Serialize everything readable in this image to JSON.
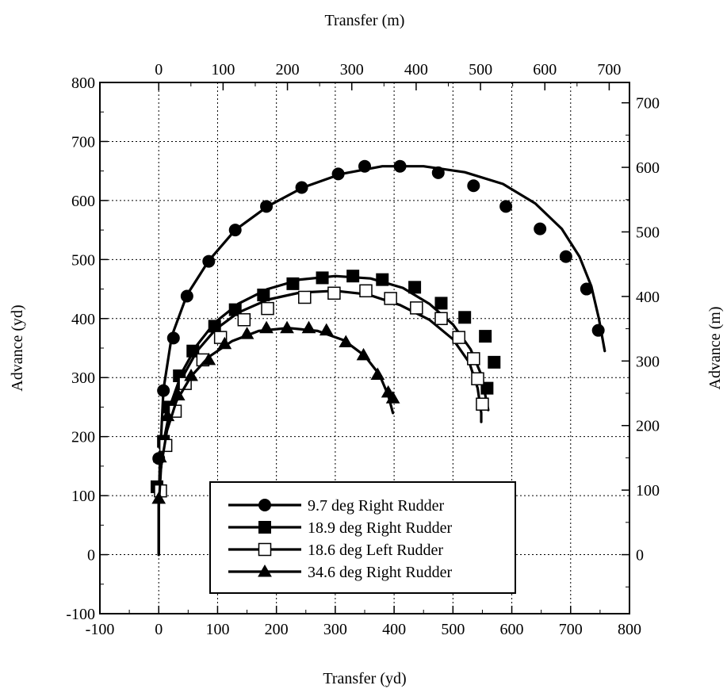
{
  "chart_data": {
    "type": "line",
    "xlabel": "Transfer (yd)",
    "ylabel": "Advance (yd)",
    "x2label": "Transfer (m)",
    "y2label": "Advance (m)",
    "xlim": [
      -100,
      800
    ],
    "ylim": [
      -100,
      800
    ],
    "x_ticks": [
      -100,
      0,
      100,
      200,
      300,
      400,
      500,
      600,
      700,
      800
    ],
    "y_ticks": [
      -100,
      0,
      100,
      200,
      300,
      400,
      500,
      600,
      700,
      800
    ],
    "x2_ticks": [
      0,
      100,
      200,
      300,
      400,
      500,
      600,
      700
    ],
    "y2_ticks": [
      0,
      100,
      200,
      300,
      400,
      500,
      600,
      700
    ],
    "grid": true,
    "legend_position": "bottom-center",
    "series": [
      {
        "name": "9.7 deg Right Rudder",
        "marker": "filled-circle",
        "line": [
          [
            0,
            0
          ],
          [
            0,
            80
          ],
          [
            2,
            160
          ],
          [
            8,
            280
          ],
          [
            22,
            370
          ],
          [
            48,
            440
          ],
          [
            85,
            498
          ],
          [
            130,
            550
          ],
          [
            185,
            590
          ],
          [
            245,
            622
          ],
          [
            310,
            645
          ],
          [
            380,
            658
          ],
          [
            450,
            658
          ],
          [
            520,
            648
          ],
          [
            585,
            628
          ],
          [
            640,
            595
          ],
          [
            685,
            552
          ],
          [
            715,
            505
          ],
          [
            735,
            455
          ],
          [
            748,
            400
          ],
          [
            758,
            345
          ]
        ],
        "points": [
          [
            0,
            163
          ],
          [
            8,
            278
          ],
          [
            25,
            367
          ],
          [
            48,
            438
          ],
          [
            85,
            497
          ],
          [
            130,
            550
          ],
          [
            183,
            590
          ],
          [
            243,
            622
          ],
          [
            305,
            645
          ],
          [
            350,
            658
          ],
          [
            410,
            658
          ],
          [
            475,
            647
          ],
          [
            535,
            625
          ],
          [
            590,
            590
          ],
          [
            648,
            552
          ],
          [
            692,
            505
          ],
          [
            727,
            450
          ],
          [
            747,
            380
          ]
        ]
      },
      {
        "name": "18.9 deg Right Rudder",
        "marker": "filled-square",
        "line": [
          [
            0,
            0
          ],
          [
            0,
            80
          ],
          [
            3,
            140
          ],
          [
            10,
            200
          ],
          [
            22,
            260
          ],
          [
            40,
            310
          ],
          [
            65,
            355
          ],
          [
            95,
            393
          ],
          [
            135,
            425
          ],
          [
            185,
            450
          ],
          [
            240,
            466
          ],
          [
            300,
            472
          ],
          [
            360,
            468
          ],
          [
            415,
            452
          ],
          [
            460,
            425
          ],
          [
            500,
            390
          ],
          [
            530,
            348
          ],
          [
            548,
            305
          ],
          [
            556,
            265
          ],
          [
            560,
            245
          ]
        ],
        "points": [
          [
            -3,
            115
          ],
          [
            8,
            192
          ],
          [
            18,
            250
          ],
          [
            35,
            303
          ],
          [
            58,
            345
          ],
          [
            95,
            387
          ],
          [
            130,
            415
          ],
          [
            178,
            440
          ],
          [
            228,
            459
          ],
          [
            278,
            469
          ],
          [
            330,
            472
          ],
          [
            380,
            466
          ],
          [
            435,
            453
          ],
          [
            480,
            426
          ],
          [
            520,
            402
          ],
          [
            555,
            370
          ],
          [
            570,
            326
          ],
          [
            558,
            282
          ]
        ]
      },
      {
        "name": "18.6 deg Left Rudder",
        "marker": "open-square",
        "line": [
          [
            0,
            0
          ],
          [
            0,
            80
          ],
          [
            3,
            140
          ],
          [
            10,
            195
          ],
          [
            22,
            250
          ],
          [
            40,
            300
          ],
          [
            65,
            345
          ],
          [
            97,
            382
          ],
          [
            135,
            410
          ],
          [
            185,
            432
          ],
          [
            240,
            444
          ],
          [
            300,
            447
          ],
          [
            355,
            441
          ],
          [
            410,
            423
          ],
          [
            460,
            398
          ],
          [
            500,
            365
          ],
          [
            528,
            325
          ],
          [
            542,
            282
          ],
          [
            548,
            240
          ],
          [
            548,
            225
          ]
        ],
        "points": [
          [
            3,
            108
          ],
          [
            12,
            185
          ],
          [
            28,
            243
          ],
          [
            45,
            290
          ],
          [
            75,
            330
          ],
          [
            105,
            368
          ],
          [
            145,
            398
          ],
          [
            185,
            417
          ],
          [
            248,
            436
          ],
          [
            298,
            443
          ],
          [
            352,
            447
          ],
          [
            394,
            434
          ],
          [
            438,
            418
          ],
          [
            480,
            400
          ],
          [
            510,
            368
          ],
          [
            535,
            332
          ],
          [
            542,
            298
          ],
          [
            550,
            255
          ]
        ]
      },
      {
        "name": "34.6 deg Right Rudder",
        "marker": "filled-triangle",
        "line": [
          [
            0,
            0
          ],
          [
            0,
            80
          ],
          [
            4,
            150
          ],
          [
            14,
            210
          ],
          [
            30,
            260
          ],
          [
            55,
            302
          ],
          [
            85,
            335
          ],
          [
            125,
            362
          ],
          [
            170,
            379
          ],
          [
            220,
            384
          ],
          [
            270,
            379
          ],
          [
            315,
            363
          ],
          [
            350,
            337
          ],
          [
            375,
            305
          ],
          [
            390,
            270
          ],
          [
            398,
            240
          ]
        ],
        "points": [
          [
            0,
            95
          ],
          [
            2,
            165
          ],
          [
            15,
            235
          ],
          [
            33,
            270
          ],
          [
            55,
            303
          ],
          [
            85,
            330
          ],
          [
            112,
            357
          ],
          [
            150,
            374
          ],
          [
            183,
            384
          ],
          [
            218,
            384
          ],
          [
            255,
            384
          ],
          [
            285,
            380
          ],
          [
            318,
            360
          ],
          [
            348,
            338
          ],
          [
            372,
            305
          ],
          [
            390,
            275
          ],
          [
            398,
            265
          ]
        ]
      }
    ]
  }
}
